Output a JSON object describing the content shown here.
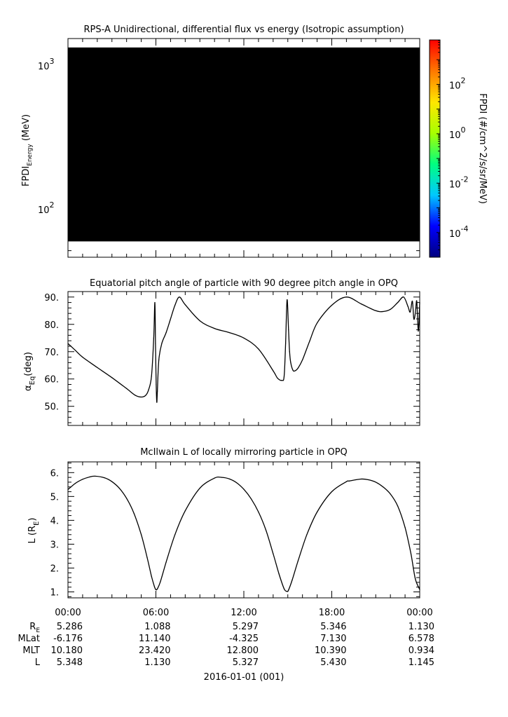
{
  "chart_data": [
    {
      "type": "heatmap",
      "title": "RPS-A Unidirectional, differential flux vs energy (Isotropic assumption)",
      "ylabel_main": "FPDI",
      "ylabel_sub": "Energy",
      "ylabel_unit": "(MeV)",
      "yscale": "log",
      "ylim": [
        45,
        1500
      ],
      "yticks": [
        {
          "v": 100,
          "base": "10",
          "exp": "2"
        },
        {
          "v": 1000,
          "base": "10",
          "exp": "3"
        }
      ],
      "data_range": [
        58,
        1300
      ],
      "fill_color": "#000000",
      "colorbar": {
        "label": "FPDI (#/cm^2/s/sr/MeV)",
        "log_range": [
          -5,
          3.8
        ],
        "ticks": [
          {
            "base": "10",
            "exp": "2",
            "v": 2
          },
          {
            "base": "10",
            "exp": "0",
            "v": 0
          },
          {
            "base": "10",
            "exp": "-2",
            "v": -2
          },
          {
            "base": "10",
            "exp": "-4",
            "v": -4
          }
        ],
        "colors": [
          "#00007f",
          "#0000ff",
          "#00c8ff",
          "#00ff80",
          "#a8ff00",
          "#ffe600",
          "#ff7800",
          "#ff0000"
        ]
      }
    },
    {
      "type": "line",
      "title": "Equatorial pitch angle of particle with 90 degree pitch angle in OPQ",
      "ylabel_main": "α",
      "ylabel_sub": "Eq",
      "ylabel_unit": "(deg)",
      "ylim": [
        43,
        92
      ],
      "yticks": [
        "50.",
        "60.",
        "70.",
        "80.",
        "90."
      ],
      "xlim": [
        0,
        24
      ],
      "x": [
        0,
        0.5,
        1,
        2,
        3,
        4,
        4.6,
        5,
        5.3,
        5.5,
        5.7,
        5.85,
        5.93,
        5.97,
        6.02,
        6.06,
        6.1,
        6.2,
        6.4,
        6.7,
        7,
        7.3,
        7.6,
        8,
        9,
        10,
        11,
        12,
        13,
        14,
        14.3,
        14.6,
        14.75,
        14.85,
        14.95,
        15.05,
        15.12,
        15.2,
        15.35,
        15.5,
        15.7,
        16,
        16.5,
        17,
        18,
        19,
        20,
        21,
        21.5,
        22,
        22.5,
        22.9,
        23.2,
        23.35,
        23.5,
        23.6,
        23.7,
        23.8,
        23.9,
        24
      ],
      "values": [
        73,
        70.5,
        68,
        64.2,
        60.5,
        56.5,
        54,
        53.4,
        54,
        56,
        61,
        75,
        88,
        73,
        58,
        51.5,
        55.5,
        67,
        73,
        77,
        82,
        87,
        90,
        87.2,
        81.3,
        78.5,
        77,
        75,
        71,
        63,
        60.3,
        59.5,
        61,
        73,
        89,
        78,
        70,
        66,
        63.2,
        63,
        64,
        67,
        74,
        80.5,
        87,
        90,
        87.5,
        85,
        84.7,
        85.5,
        88,
        90,
        86.5,
        84.5,
        88.5,
        82,
        84,
        88.5,
        77.5,
        88
      ]
    },
    {
      "type": "line",
      "title": "McIlwain L of locally mirroring particle in OPQ",
      "ylabel_main": "L (R",
      "ylabel_sub": "E",
      "ylabel_unit": ")",
      "ylim": [
        0.75,
        6.45
      ],
      "yticks": [
        "1.",
        "2.",
        "3.",
        "4.",
        "5.",
        "6."
      ],
      "xlim": [
        0,
        24
      ],
      "x": [
        0,
        0.5,
        1,
        1.5,
        1.85,
        2.5,
        3,
        3.5,
        4,
        4.5,
        5,
        5.4,
        5.7,
        5.9,
        6.0,
        6.1,
        6.3,
        6.7,
        7.3,
        8,
        9,
        10,
        10.5,
        11,
        11.5,
        12,
        12.5,
        13,
        13.5,
        14,
        14.4,
        14.75,
        14.95,
        15.05,
        15.3,
        15.7,
        16.3,
        17,
        18,
        19,
        19.2,
        20,
        20.5,
        21,
        21.5,
        22,
        22.5,
        23,
        23.4,
        23.7,
        24
      ],
      "values": [
        5.29,
        5.55,
        5.72,
        5.82,
        5.85,
        5.78,
        5.62,
        5.35,
        4.92,
        4.3,
        3.4,
        2.45,
        1.65,
        1.22,
        1.09,
        1.13,
        1.42,
        2.25,
        3.4,
        4.4,
        5.35,
        5.77,
        5.8,
        5.74,
        5.58,
        5.3,
        4.9,
        4.35,
        3.6,
        2.6,
        1.75,
        1.13,
        1.02,
        1.08,
        1.5,
        2.3,
        3.4,
        4.35,
        5.2,
        5.62,
        5.65,
        5.73,
        5.7,
        5.6,
        5.4,
        5.1,
        4.6,
        3.7,
        2.6,
        1.55,
        1.1
      ]
    }
  ],
  "time_axis": {
    "tick_labels": [
      "00:00",
      "06:00",
      "12:00",
      "18:00",
      "00:00"
    ],
    "date_label": "2016-01-01 (001)"
  },
  "ephemeris": [
    {
      "label_main": "R",
      "label_sub": "E",
      "values": [
        "5.286",
        "1.088",
        "5.297",
        "5.346",
        "1.130"
      ]
    },
    {
      "label_main": "MLat",
      "label_sub": "",
      "values": [
        "-6.176",
        "11.140",
        "-4.325",
        "7.130",
        "6.578"
      ]
    },
    {
      "label_main": "MLT",
      "label_sub": "",
      "values": [
        "10.180",
        "23.420",
        "12.800",
        "10.390",
        "0.934"
      ]
    },
    {
      "label_main": "L",
      "label_sub": "",
      "values": [
        "5.348",
        "1.130",
        "5.327",
        "5.430",
        "1.145"
      ]
    }
  ]
}
